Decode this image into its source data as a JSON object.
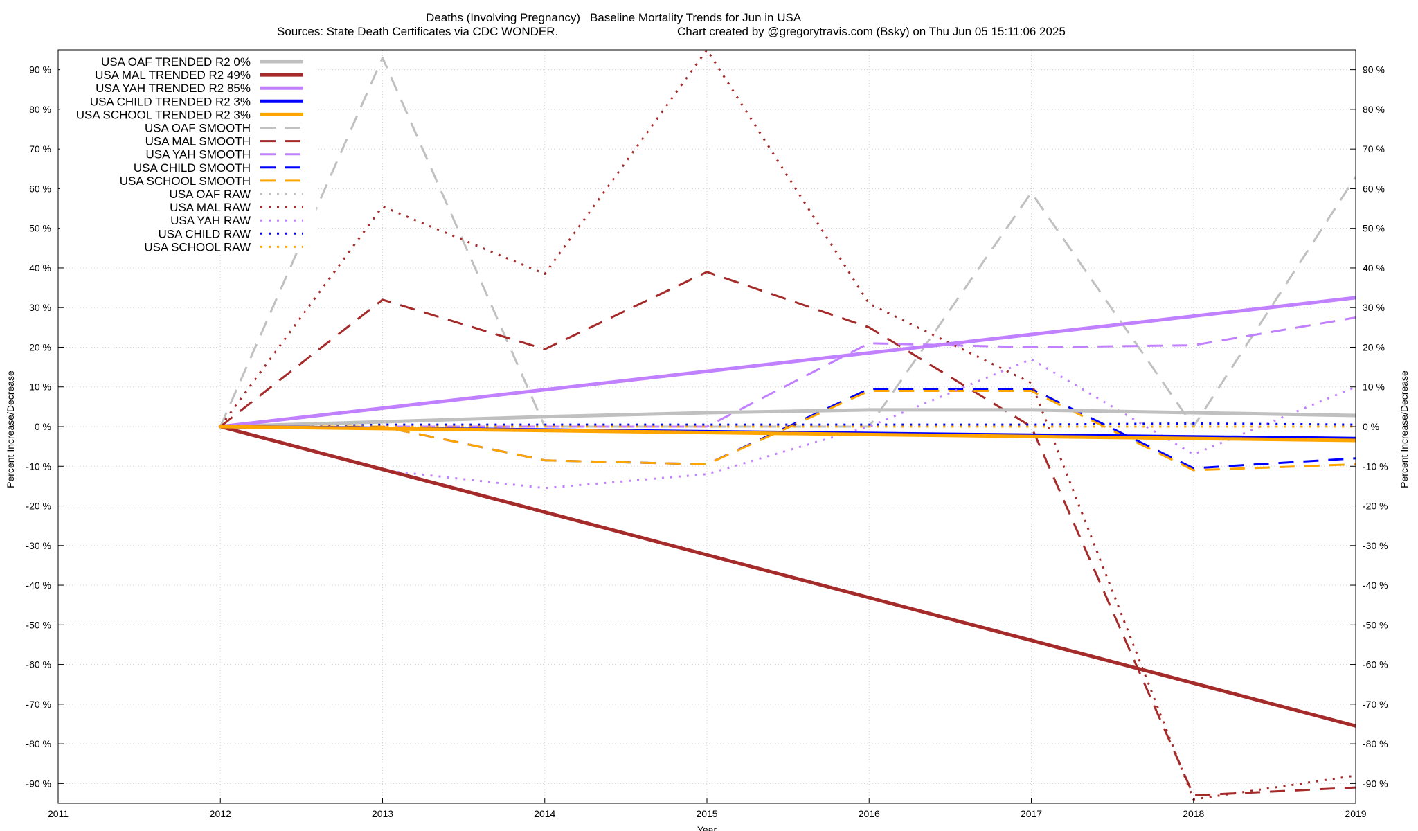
{
  "title": {
    "line1_left": "Deaths (Involving Pregnancy)",
    "line1_right": "Baseline Mortality Trends for Jun in USA",
    "line2_left": "Sources: State Death Certificates via CDC WONDER.",
    "line2_right": "Chart created by @gregorytravis.com (Bsky) on Thu Jun 05 15:11:06 2025"
  },
  "chart_data": {
    "type": "line",
    "xlabel": "Year",
    "ylabel": "Percent Increase/Decrease",
    "xlim": [
      2011,
      2019
    ],
    "ylim": [
      -95,
      95
    ],
    "grid": true,
    "legend_placement": "top-left",
    "x_ticks": [
      "2011",
      "2012",
      "2013",
      "2014",
      "2015",
      "2016",
      "2017",
      "2018",
      "2019"
    ],
    "y_ticks": [
      {
        "v": 90,
        "label": "90 %"
      },
      {
        "v": 80,
        "label": "80 %"
      },
      {
        "v": 70,
        "label": "70 %"
      },
      {
        "v": 60,
        "label": "60 %"
      },
      {
        "v": 50,
        "label": "50 %"
      },
      {
        "v": 40,
        "label": "40 %"
      },
      {
        "v": 30,
        "label": "30 %"
      },
      {
        "v": 20,
        "label": "20 %"
      },
      {
        "v": 10,
        "label": "10 %"
      },
      {
        "v": 0,
        "label": "0 %"
      },
      {
        "v": -10,
        "label": "-10 %"
      },
      {
        "v": -20,
        "label": "-20 %"
      },
      {
        "v": -30,
        "label": "-30 %"
      },
      {
        "v": -40,
        "label": "-40 %"
      },
      {
        "v": -50,
        "label": "-50 %"
      },
      {
        "v": -60,
        "label": "-60 %"
      },
      {
        "v": -70,
        "label": "-70 %"
      },
      {
        "v": -80,
        "label": "-80 %"
      },
      {
        "v": -90,
        "label": "-90 %"
      }
    ],
    "series": [
      {
        "name": "USA OAF TRENDED R2   0%",
        "style": "trend",
        "color": "#c0c0c0",
        "x": [
          2012,
          2013,
          2014,
          2015,
          2016,
          2017,
          2018,
          2019
        ],
        "y": [
          0,
          1.2,
          2.5,
          3.5,
          4.2,
          4.2,
          3.5,
          2.8
        ]
      },
      {
        "name": "USA MAL TRENDED R2  49%",
        "style": "trend",
        "color": "#a52a2a",
        "x": [
          2012,
          2019
        ],
        "y": [
          0,
          -75.5
        ]
      },
      {
        "name": "USA YAH TRENDED R2  85%",
        "style": "trend",
        "color": "#c080ff",
        "x": [
          2012,
          2019
        ],
        "y": [
          0,
          32.5
        ]
      },
      {
        "name": "USA CHILD TRENDED R2   3%",
        "style": "trend",
        "color": "#0000ff",
        "x": [
          2012,
          2019
        ],
        "y": [
          0,
          -3
        ]
      },
      {
        "name": "USA SCHOOL TRENDED R2   3%",
        "style": "trend",
        "color": "#ffa500",
        "x": [
          2012,
          2019
        ],
        "y": [
          0,
          -3.5
        ]
      },
      {
        "name": "USA OAF SMOOTH",
        "style": "smooth",
        "color": "#c0c0c0",
        "x": [
          2012,
          2013,
          2014,
          2015,
          2016,
          2017,
          2018,
          2019
        ],
        "y": [
          0,
          93,
          0,
          0,
          0,
          59,
          0,
          63
        ]
      },
      {
        "name": "USA MAL SMOOTH",
        "style": "smooth",
        "color": "#a52a2a",
        "x": [
          2012,
          2013,
          2014,
          2015,
          2016,
          2017,
          2018,
          2019
        ],
        "y": [
          0,
          32,
          19.5,
          39,
          25,
          0,
          -93,
          -91
        ]
      },
      {
        "name": "USA YAH SMOOTH",
        "style": "smooth",
        "color": "#c080ff",
        "x": [
          2012,
          2013,
          2014,
          2015,
          2016,
          2017,
          2018,
          2019
        ],
        "y": [
          0,
          0,
          0,
          0,
          21,
          20,
          20.5,
          27.5
        ]
      },
      {
        "name": "USA CHILD SMOOTH",
        "style": "smooth",
        "color": "#0000ff",
        "x": [
          2012,
          2013,
          2014,
          2015,
          2016,
          2017,
          2018,
          2019
        ],
        "y": [
          0,
          0,
          -8.5,
          -9.5,
          9.5,
          9.5,
          -10.5,
          -8
        ]
      },
      {
        "name": "USA SCHOOL SMOOTH",
        "style": "smooth",
        "color": "#ffa500",
        "x": [
          2012,
          2013,
          2014,
          2015,
          2016,
          2017,
          2018,
          2019
        ],
        "y": [
          0,
          0,
          -8.5,
          -9.5,
          9,
          9,
          -11,
          -9.5
        ]
      },
      {
        "name": "USA OAF RAW",
        "style": "raw",
        "color": "#c0c0c0",
        "x": [
          2012,
          2013,
          2014,
          2015,
          2016,
          2017,
          2018,
          2019
        ],
        "y": [
          0,
          0,
          0,
          0,
          0,
          0,
          0,
          0
        ]
      },
      {
        "name": "USA MAL RAW",
        "style": "raw",
        "color": "#a52a2a",
        "x": [
          2012,
          2013,
          2014,
          2015,
          2016,
          2017,
          2018,
          2019
        ],
        "y": [
          0,
          55.5,
          38.5,
          95,
          31,
          11,
          -94,
          -88
        ]
      },
      {
        "name": "USA YAH RAW",
        "style": "raw",
        "color": "#c080ff",
        "x": [
          2012,
          2013,
          2014,
          2015,
          2016,
          2017,
          2018,
          2019
        ],
        "y": [
          0,
          -11,
          -15.5,
          -12,
          0,
          17,
          -7,
          10
        ]
      },
      {
        "name": "USA CHILD RAW",
        "style": "raw",
        "color": "#0000ff",
        "x": [
          2012,
          2013,
          2014,
          2015,
          2016,
          2017,
          2018,
          2019
        ],
        "y": [
          0,
          0.5,
          0.5,
          0.5,
          0.5,
          0.5,
          0.8,
          0.5
        ]
      },
      {
        "name": "USA SCHOOL RAW",
        "style": "raw",
        "color": "#ffa500",
        "x": [
          2012,
          2013,
          2014,
          2015,
          2016,
          2017,
          2018,
          2019
        ],
        "y": [
          0,
          0,
          0,
          0,
          0,
          0,
          0,
          0
        ]
      }
    ]
  }
}
